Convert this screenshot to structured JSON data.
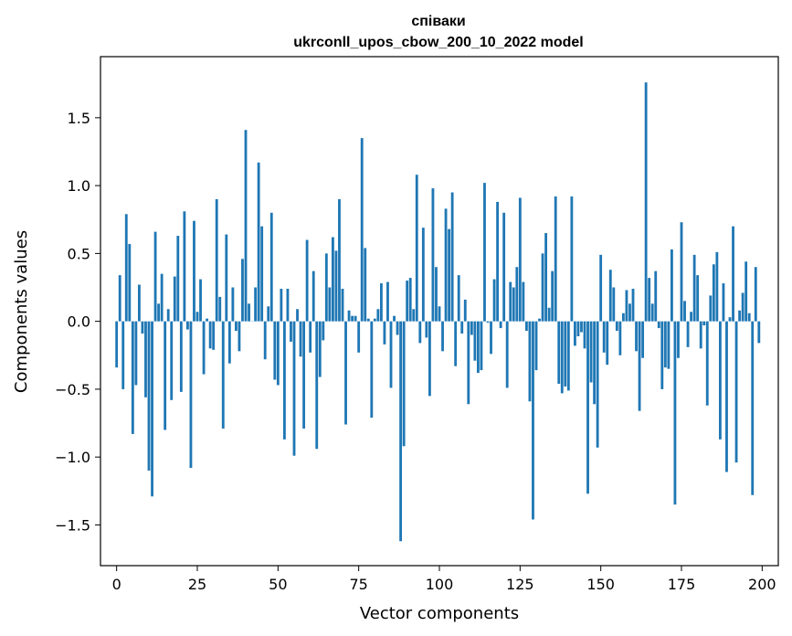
{
  "chart_data": {
    "type": "bar",
    "title": "співаки",
    "subtitle": "ukrconll_upos_cbow_200_10_2022 model",
    "xlabel": "Vector components",
    "ylabel": "Components values",
    "xlim": [
      -5,
      205
    ],
    "ylim": [
      -1.8,
      1.95
    ],
    "xticks": [
      0,
      25,
      50,
      75,
      100,
      125,
      150,
      175,
      200
    ],
    "yticks": [
      -1.5,
      -1.0,
      -0.5,
      0.0,
      0.5,
      1.0,
      1.5
    ],
    "ytick_labels": [
      "−1.5",
      "−1.0",
      "−0.5",
      "0.0",
      "0.5",
      "1.0",
      "1.5"
    ],
    "bar_color": "#1f77b4",
    "grid": false,
    "values": [
      -0.34,
      0.34,
      -0.5,
      0.79,
      0.57,
      -0.83,
      -0.47,
      0.27,
      -0.09,
      -0.56,
      -1.1,
      -1.29,
      0.66,
      0.13,
      0.35,
      -0.8,
      0.09,
      -0.58,
      0.33,
      0.63,
      -0.52,
      0.81,
      -0.06,
      -1.08,
      0.74,
      0.07,
      0.31,
      -0.39,
      0.02,
      -0.2,
      -0.21,
      0.9,
      0.18,
      -0.79,
      0.64,
      -0.31,
      0.25,
      -0.07,
      -0.22,
      0.46,
      1.41,
      0.13,
      0.0,
      0.25,
      1.17,
      0.7,
      -0.28,
      0.11,
      0.8,
      -0.43,
      -0.47,
      0.24,
      -0.87,
      0.24,
      -0.15,
      -0.99,
      0.09,
      -0.26,
      -0.79,
      0.6,
      -0.23,
      0.37,
      -0.94,
      -0.41,
      -0.14,
      0.5,
      0.25,
      0.62,
      0.52,
      0.9,
      0.24,
      -0.76,
      0.08,
      0.04,
      0.04,
      -0.23,
      1.35,
      0.54,
      0.02,
      -0.71,
      0.02,
      0.09,
      0.28,
      -0.17,
      0.29,
      -0.49,
      0.04,
      -0.1,
      -1.62,
      -0.92,
      0.3,
      0.32,
      0.09,
      1.08,
      -0.16,
      0.69,
      -0.12,
      -0.55,
      0.98,
      0.4,
      0.11,
      -0.22,
      0.83,
      0.68,
      0.95,
      -0.33,
      0.34,
      -0.09,
      0.16,
      -0.61,
      -0.1,
      -0.29,
      -0.38,
      -0.36,
      1.02,
      -0.01,
      -0.24,
      0.31,
      0.88,
      -0.05,
      0.8,
      -0.49,
      0.29,
      0.25,
      0.4,
      0.91,
      0.29,
      -0.07,
      -0.59,
      -1.46,
      -0.36,
      0.02,
      0.5,
      0.65,
      0.1,
      0.37,
      0.92,
      -0.46,
      -0.53,
      -0.48,
      -0.51,
      0.92,
      -0.18,
      -0.11,
      -0.08,
      -0.2,
      -1.27,
      -0.45,
      -0.61,
      -0.93,
      0.49,
      -0.23,
      -0.32,
      0.38,
      0.25,
      -0.07,
      -0.25,
      0.06,
      0.23,
      0.13,
      0.24,
      -0.22,
      -0.66,
      -0.27,
      1.76,
      0.32,
      0.13,
      0.37,
      -0.05,
      -0.5,
      -0.34,
      -0.35,
      0.53,
      -1.35,
      -0.27,
      0.73,
      0.15,
      -0.19,
      0.07,
      0.49,
      0.34,
      -0.2,
      -0.03,
      -0.62,
      0.19,
      0.42,
      0.51,
      -0.87,
      0.28,
      -1.11,
      0.03,
      0.7,
      -1.04,
      0.08,
      0.21,
      0.44,
      0.06,
      -1.28,
      0.4,
      -0.16
    ]
  }
}
